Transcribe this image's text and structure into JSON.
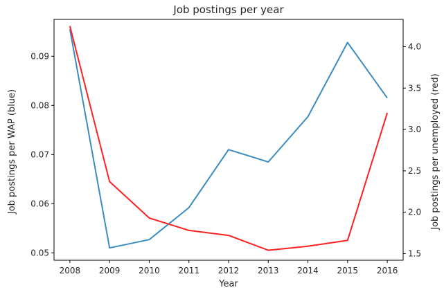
{
  "chart_data": {
    "type": "line",
    "title": "Job postings per year",
    "xlabel": "Year",
    "ylabel_left": "Job postings per WAP (blue)",
    "ylabel_right": "Job postings per unemployed (red)",
    "x": [
      2008,
      2009,
      2010,
      2011,
      2012,
      2013,
      2014,
      2015,
      2016
    ],
    "xlim": [
      2007.6,
      2016.4
    ],
    "xticks": [
      "2008",
      "2009",
      "2010",
      "2011",
      "2012",
      "2013",
      "2014",
      "2015",
      "2016"
    ],
    "y_left": {
      "ylim": [
        0.0485,
        0.0975
      ],
      "ticks": [
        0.05,
        0.06,
        0.07,
        0.08,
        0.09
      ],
      "tick_labels": [
        "0.05",
        "0.06",
        "0.07",
        "0.08",
        "0.09"
      ]
    },
    "y_right": {
      "ylim": [
        1.42,
        4.33
      ],
      "ticks": [
        1.5,
        2.0,
        2.5,
        3.0,
        3.5,
        4.0
      ],
      "tick_labels": [
        "1.5",
        "2.0",
        "2.5",
        "3.0",
        "3.5",
        "4.0"
      ]
    },
    "series": [
      {
        "axis": "left",
        "color": "#3a8cc0",
        "values": [
          0.0955,
          0.051,
          0.0527,
          0.0592,
          0.071,
          0.0685,
          0.0777,
          0.0928,
          0.0815
        ]
      },
      {
        "axis": "right",
        "color": "#ff2020",
        "values": [
          4.25,
          2.37,
          1.93,
          1.78,
          1.72,
          1.54,
          1.59,
          1.66,
          3.2
        ]
      }
    ],
    "grid": false,
    "legend": "none"
  }
}
